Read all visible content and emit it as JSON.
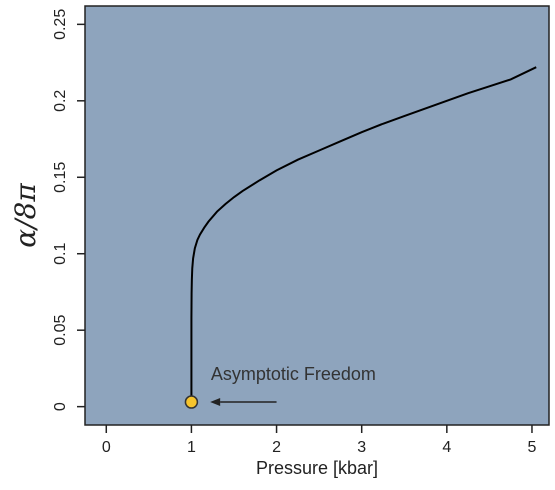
{
  "chart_data": {
    "type": "line",
    "title": "",
    "xlabel": "Pressure [kbar]",
    "ylabel": "α/8π",
    "xlim": [
      -0.25,
      5.2
    ],
    "ylim": [
      -0.012,
      0.262
    ],
    "x_ticks": [
      0,
      1,
      2,
      3,
      4,
      5
    ],
    "y_ticks": [
      0,
      0.05,
      0.1,
      0.15,
      0.2,
      0.25
    ],
    "x_tick_labels": [
      "0",
      "1",
      "2",
      "3",
      "4",
      "5"
    ],
    "y_tick_labels": [
      "0",
      "0.05",
      "0.1",
      "0.15",
      "0.2",
      "0.25"
    ],
    "grid": false,
    "series": [
      {
        "x": [
          1.0,
          1.0,
          1.001,
          1.002,
          1.005,
          1.01,
          1.02,
          1.04,
          1.07,
          1.1,
          1.15,
          1.2,
          1.3,
          1.4,
          1.5,
          1.6,
          1.8,
          2.0,
          2.25,
          2.5,
          2.75,
          3.0,
          3.25,
          3.5,
          3.75,
          4.0,
          4.25,
          4.5,
          4.75,
          5.05
        ],
        "y": [
          0.003,
          0.058,
          0.066,
          0.074,
          0.083,
          0.0905,
          0.097,
          0.1035,
          0.109,
          0.1125,
          0.117,
          0.121,
          0.1275,
          0.1325,
          0.137,
          0.141,
          0.148,
          0.1545,
          0.1615,
          0.1675,
          0.1735,
          0.1795,
          0.185,
          0.19,
          0.195,
          0.2,
          0.205,
          0.2095,
          0.214,
          0.222
        ]
      }
    ],
    "marker": {
      "x": 1.0,
      "y": 0.003,
      "fill": "#f6c42d",
      "stroke": "#333333"
    },
    "annotation": {
      "text": "Asymptotic Freedom",
      "arrow_from_x": 2.0,
      "arrow_to_x": 1.22,
      "arrow_y": 0.003
    },
    "colors": {
      "plot_background": "#8ea4bd",
      "line": "#000000",
      "frame": "#222222"
    }
  }
}
